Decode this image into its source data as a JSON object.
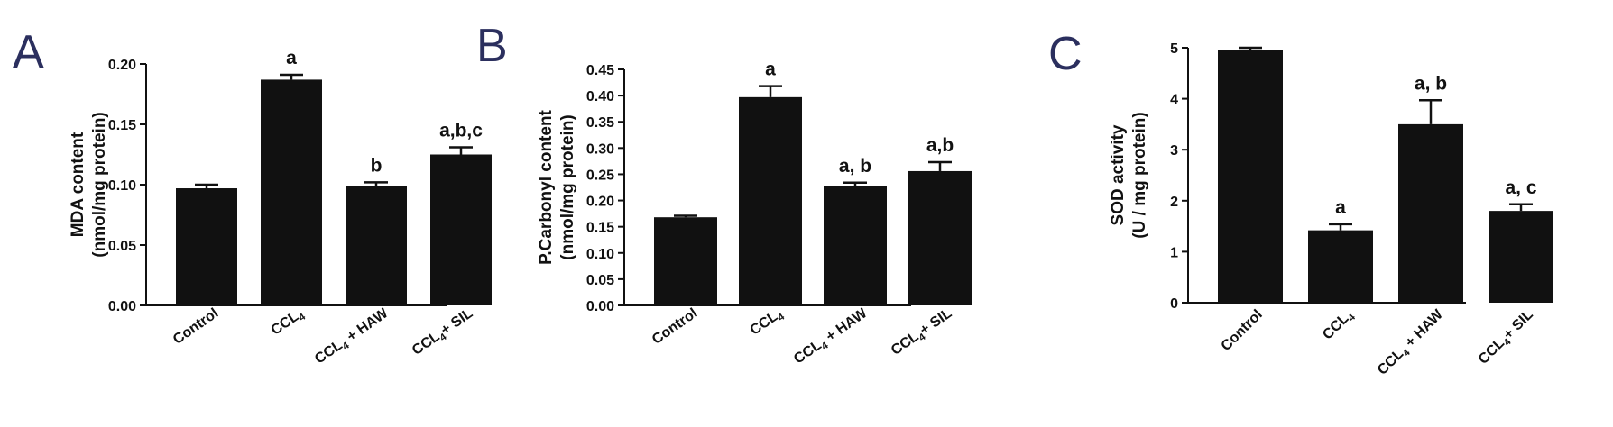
{
  "chart_data": [
    {
      "panel": "A",
      "type": "bar",
      "categories": [
        "Control",
        "CCL4",
        "CCL4 + HAW",
        "CCL4+ SIL"
      ],
      "values": [
        0.097,
        0.187,
        0.099,
        0.125
      ],
      "errors": [
        0.003,
        0.004,
        0.003,
        0.006
      ],
      "annotations": [
        "",
        "a",
        "b",
        "a,b,c"
      ],
      "ylabel": [
        "MDA content",
        "(nmol/mg protein)"
      ],
      "ylim": [
        0,
        0.2
      ],
      "yticks": [
        "0.00",
        "0.05",
        "0.10",
        "0.15",
        "0.20"
      ],
      "bar_color": "#111111"
    },
    {
      "panel": "B",
      "type": "bar",
      "categories": [
        "Control",
        "CCL4",
        "CCL4 + HAW",
        "CCL4+ SIL"
      ],
      "values": [
        0.168,
        0.397,
        0.227,
        0.256
      ],
      "errors": [
        0.003,
        0.021,
        0.007,
        0.017
      ],
      "annotations": [
        "",
        "a",
        "a, b",
        "a,b"
      ],
      "ylabel": [
        "P.Carbonyl content",
        "(nmol/mg protein)"
      ],
      "ylim": [
        0,
        0.45
      ],
      "yticks": [
        "0.00",
        "0.05",
        "0.10",
        "0.15",
        "0.20",
        "0.25",
        "0.30",
        "0.35",
        "0.40",
        "0.45"
      ],
      "bar_color": "#111111"
    },
    {
      "panel": "C",
      "type": "bar",
      "categories": [
        "Control",
        "CCL4",
        "CCL4 + HAW",
        "CCL4+ SIL"
      ],
      "values": [
        4.95,
        1.42,
        3.5,
        1.8
      ],
      "errors": [
        0.05,
        0.12,
        0.47,
        0.13
      ],
      "annotations": [
        "",
        "a",
        "a, b",
        "a, c"
      ],
      "ylabel": [
        "SOD activity",
        "(U / mg protein)"
      ],
      "ylim": [
        0,
        5
      ],
      "yticks": [
        "0",
        "1",
        "2",
        "3",
        "4",
        "5"
      ],
      "bar_color": "#111111"
    }
  ]
}
